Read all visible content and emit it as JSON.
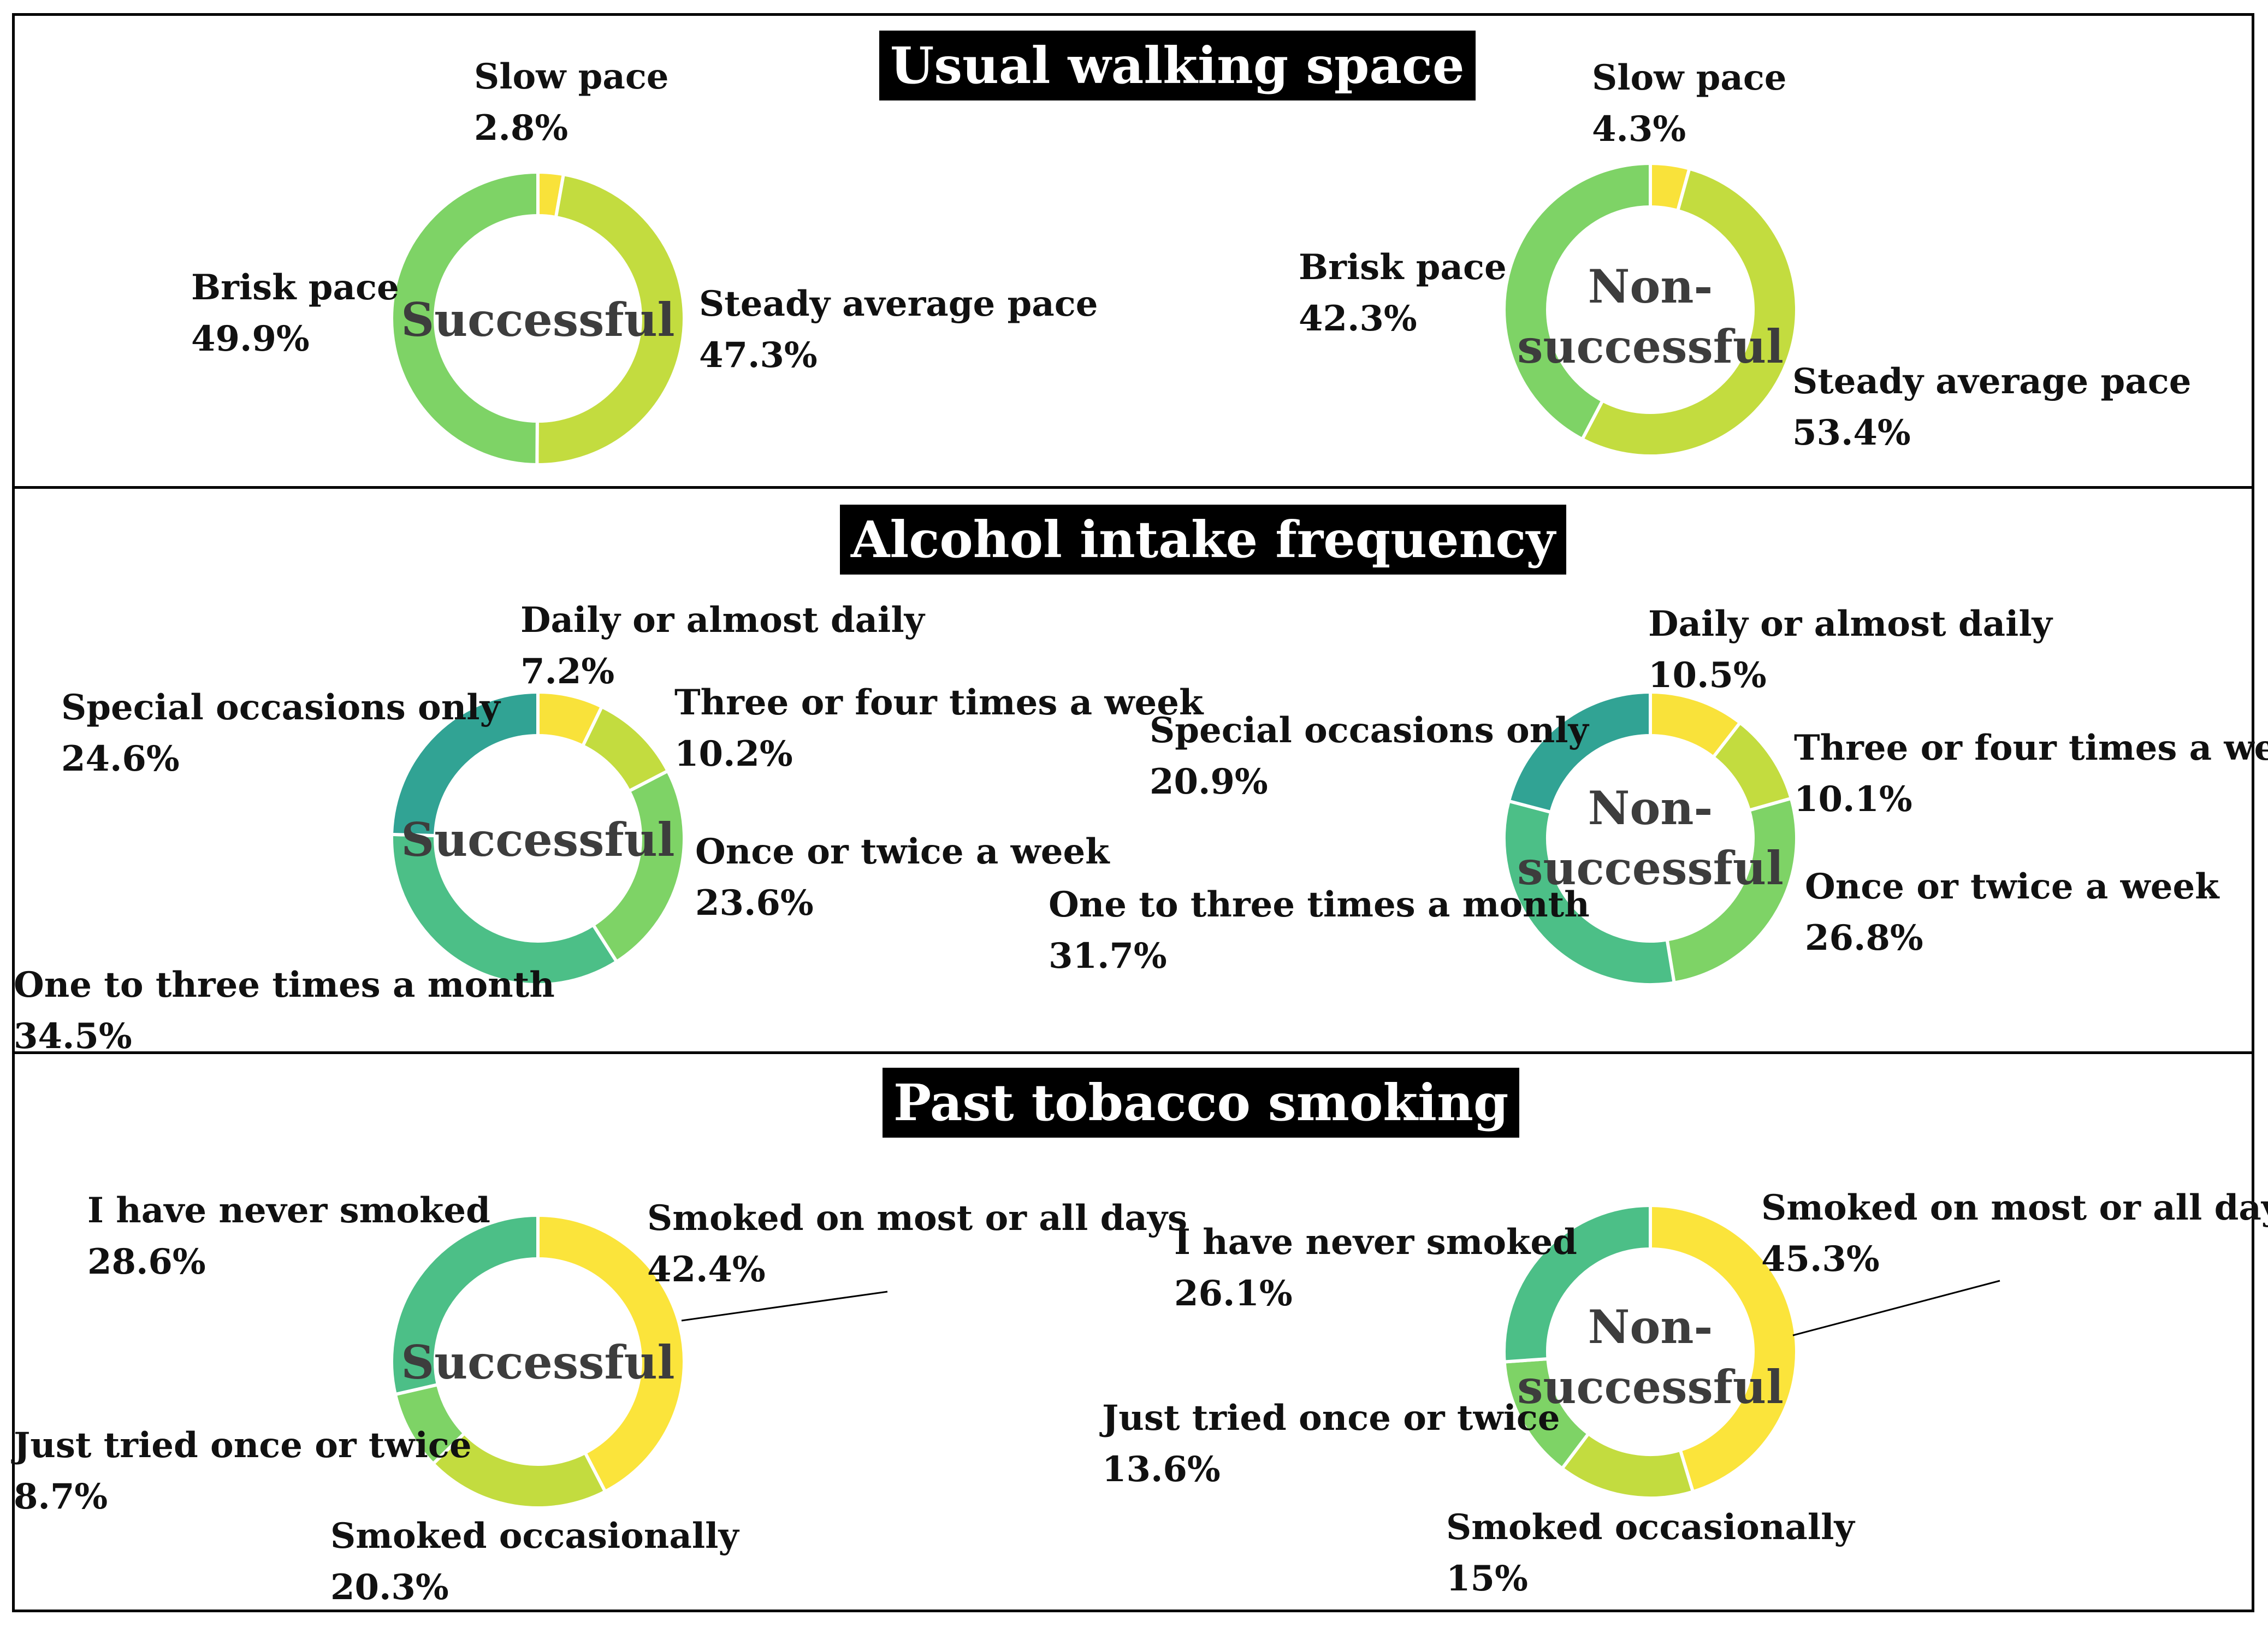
{
  "panels": [
    {
      "title": "Usual walking space",
      "charts": [
        {
          "center_label": "Successful",
          "slices": [
            {
              "label": "Slow pace",
              "value": 2.8,
              "display": "2.8%",
              "color": "#f9e23a"
            },
            {
              "label": "Steady average pace",
              "value": 47.3,
              "display": "47.3%",
              "color": "#c3dc3f"
            },
            {
              "label": "Brisk pace",
              "value": 49.9,
              "display": "49.9%",
              "color": "#7ed366"
            }
          ]
        },
        {
          "center_label": "Non-successful",
          "center_lines": [
            "Non-",
            "successful"
          ],
          "slices": [
            {
              "label": "Slow pace",
              "value": 4.3,
              "display": "4.3%",
              "color": "#f9e23a"
            },
            {
              "label": "Steady average pace",
              "value": 53.4,
              "display": "53.4%",
              "color": "#c3dc3f"
            },
            {
              "label": "Brisk pace",
              "value": 42.3,
              "display": "42.3%",
              "color": "#7ed366"
            }
          ]
        }
      ]
    },
    {
      "title": "Alcohol intake frequency",
      "charts": [
        {
          "center_label": "Successful",
          "slices": [
            {
              "label": "Daily or almost daily",
              "value": 7.2,
              "display": "7.2%",
              "color": "#f9e23a"
            },
            {
              "label": "Three or four times a week",
              "value": 10.2,
              "display": "10.2%",
              "color": "#c3dc3f"
            },
            {
              "label": "Once or twice a week",
              "value": 23.6,
              "display": "23.6%",
              "color": "#7ed366"
            },
            {
              "label": "One to three times a month",
              "value": 34.5,
              "display": "34.5%",
              "color": "#4cbf87"
            },
            {
              "label": "Special occasions only",
              "value": 24.6,
              "display": "24.6%",
              "color": "#31a394"
            }
          ]
        },
        {
          "center_label": "Non-successful",
          "center_lines": [
            "Non-",
            "successful"
          ],
          "slices": [
            {
              "label": "Daily or almost daily",
              "value": 10.5,
              "display": "10.5%",
              "color": "#f9e23a"
            },
            {
              "label": "Three or four times a week",
              "value": 10.1,
              "display": "10.1%",
              "color": "#c3dc3f"
            },
            {
              "label": "Once or twice a week",
              "value": 26.8,
              "display": "26.8%",
              "color": "#7ed366"
            },
            {
              "label": "One to three times a month",
              "value": 31.7,
              "display": "31.7%",
              "color": "#4cbf87"
            },
            {
              "label": "Special occasions only",
              "value": 20.9,
              "display": "20.9%",
              "color": "#31a394"
            }
          ]
        }
      ]
    },
    {
      "title": "Past tobacco smoking",
      "charts": [
        {
          "center_label": "Successful",
          "slices": [
            {
              "label": "Smoked on most or all days",
              "value": 42.4,
              "display": "42.4%",
              "color": "#fbe43b"
            },
            {
              "label": "Smoked occasionally",
              "value": 20.3,
              "display": "20.3%",
              "color": "#c3dc3f"
            },
            {
              "label": "Just tried once or twice",
              "value": 8.7,
              "display": "8.7%",
              "color": "#7ed366"
            },
            {
              "label": "I have never smoked",
              "value": 28.6,
              "display": "28.6%",
              "color": "#4cbf87"
            }
          ]
        },
        {
          "center_label": "Non-successful",
          "center_lines": [
            "Non-",
            "successful"
          ],
          "slices": [
            {
              "label": "Smoked on most or all days",
              "value": 45.3,
              "display": "45.3%",
              "color": "#fbe43b"
            },
            {
              "label": "Smoked occasionally",
              "value": 15,
              "display": "15%",
              "color": "#c3dc3f"
            },
            {
              "label": "Just tried once or twice",
              "value": 13.6,
              "display": "13.6%",
              "color": "#7ed366"
            },
            {
              "label": "I have never smoked",
              "value": 26.1,
              "display": "26.1%",
              "color": "#4cbf87"
            }
          ]
        }
      ]
    }
  ],
  "chart_data": [
    {
      "type": "pie",
      "title": "Usual walking space",
      "subtitle": "Successful",
      "categories": [
        "Slow pace",
        "Steady average pace",
        "Brisk pace"
      ],
      "values": [
        2.8,
        47.3,
        49.9
      ]
    },
    {
      "type": "pie",
      "title": "Usual walking space",
      "subtitle": "Non-successful",
      "categories": [
        "Slow pace",
        "Steady average pace",
        "Brisk pace"
      ],
      "values": [
        4.3,
        53.4,
        42.3
      ]
    },
    {
      "type": "pie",
      "title": "Alcohol intake frequency",
      "subtitle": "Successful",
      "categories": [
        "Daily or almost daily",
        "Three or four times a week",
        "Once or twice a week",
        "One to three times a month",
        "Special occasions only"
      ],
      "values": [
        7.2,
        10.2,
        23.6,
        34.5,
        24.6
      ]
    },
    {
      "type": "pie",
      "title": "Alcohol intake frequency",
      "subtitle": "Non-successful",
      "categories": [
        "Daily or almost daily",
        "Three or four times a week",
        "Once or twice a week",
        "One to three times a month",
        "Special occasions only"
      ],
      "values": [
        10.5,
        10.1,
        26.8,
        31.7,
        20.9
      ]
    },
    {
      "type": "pie",
      "title": "Past tobacco smoking",
      "subtitle": "Successful",
      "categories": [
        "Smoked on most or all days",
        "Smoked occasionally",
        "Just tried once or twice",
        "I have never smoked"
      ],
      "values": [
        42.4,
        20.3,
        8.7,
        28.6
      ]
    },
    {
      "type": "pie",
      "title": "Past tobacco smoking",
      "subtitle": "Non-successful",
      "categories": [
        "Smoked on most or all days",
        "Smoked occasionally",
        "Just tried once or twice",
        "I have never smoked"
      ],
      "values": [
        45.3,
        15,
        13.6,
        26.1
      ]
    }
  ]
}
